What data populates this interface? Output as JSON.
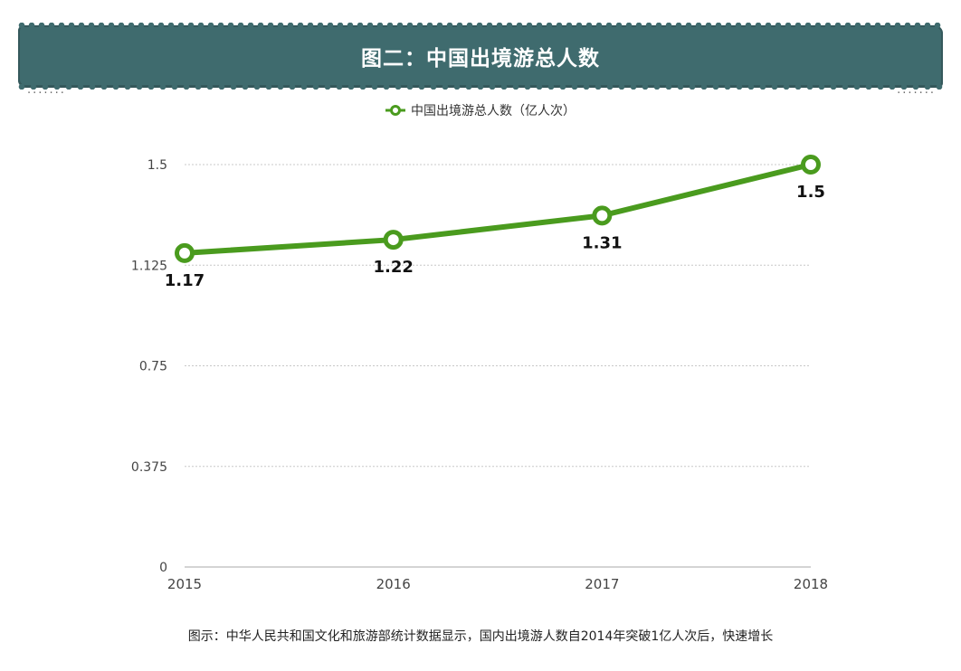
{
  "title": "图二：中国出境游总人数",
  "legend_label": "中国出境游总人数（亿人次）",
  "footnote": "图示：中华人民共和国文化和旅游部统计数据显示，国内出境游人数自2014年突破1亿人次后，快速增长",
  "colors": {
    "banner": "#3f6b6e",
    "series": "#4a9b1e",
    "grid": "#c8c8c8"
  },
  "chart_data": {
    "type": "line",
    "categories": [
      "2015",
      "2016",
      "2017",
      "2018"
    ],
    "series": [
      {
        "name": "中国出境游总人数（亿人次）",
        "values": [
          1.17,
          1.22,
          1.31,
          1.5
        ]
      }
    ],
    "data_labels": [
      "1.17",
      "1.22",
      "1.31",
      "1.5"
    ],
    "y_ticks": [
      "0",
      "0.375",
      "0.75",
      "1.125",
      "1.5"
    ],
    "ylim": [
      0,
      1.5
    ],
    "grid": true,
    "legend_position": "top-center"
  }
}
